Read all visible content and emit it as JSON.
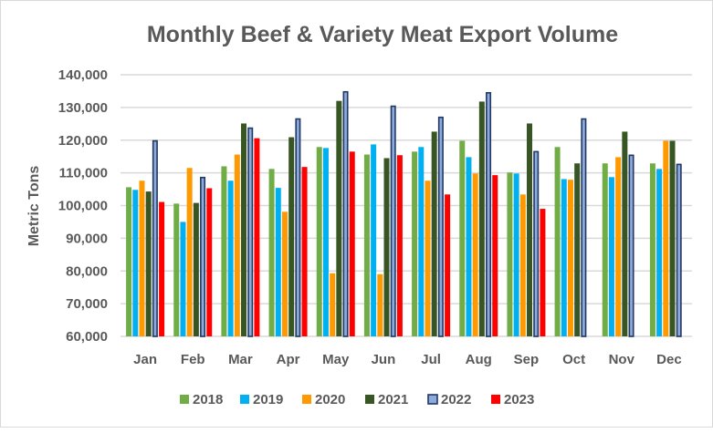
{
  "chart_data": {
    "type": "bar",
    "title": "Monthly Beef & Variety Meat Export Volume",
    "xlabel": "",
    "ylabel": "Metric Tons",
    "ylim": [
      60000,
      140000
    ],
    "yticks": [
      60000,
      70000,
      80000,
      90000,
      100000,
      110000,
      120000,
      130000,
      140000
    ],
    "ytick_labels": [
      "60,000",
      "70,000",
      "80,000",
      "90,000",
      "100,000",
      "110,000",
      "120,000",
      "130,000",
      "140,000"
    ],
    "grid": true,
    "legend_position": "bottom",
    "categories": [
      "Jan",
      "Feb",
      "Mar",
      "Apr",
      "May",
      "Jun",
      "Jul",
      "Aug",
      "Sep",
      "Oct",
      "Nov",
      "Dec"
    ],
    "series": [
      {
        "name": "2018",
        "color": "#70ad47",
        "values": [
          105600,
          100600,
          112000,
          111200,
          117900,
          115600,
          116500,
          119800,
          110100,
          117900,
          112900,
          112900
        ]
      },
      {
        "name": "2019",
        "color": "#00b0f0",
        "values": [
          104800,
          95000,
          107600,
          105400,
          117600,
          118700,
          117900,
          114800,
          109800,
          108100,
          108700,
          111200
        ]
      },
      {
        "name": "2020",
        "color": "#ff9900",
        "values": [
          107600,
          111500,
          115600,
          98100,
          79300,
          79000,
          107600,
          109800,
          103400,
          107900,
          114800,
          119800
        ]
      },
      {
        "name": "2021",
        "color": "#375623",
        "values": [
          104300,
          100800,
          125100,
          120900,
          132000,
          114500,
          122600,
          131800,
          125100,
          112900,
          122600,
          119800
        ]
      },
      {
        "name": "2022",
        "color": "#8eaadb",
        "border": "#1f3864",
        "values": [
          120000,
          108800,
          123900,
          126700,
          135000,
          130600,
          127200,
          134700,
          116700,
          126700,
          115600,
          112800
        ]
      },
      {
        "name": "2023",
        "color": "#ff0000",
        "values": [
          101100,
          105300,
          120600,
          111800,
          116500,
          115400,
          103400,
          109300,
          99000,
          null,
          null,
          null
        ]
      }
    ]
  }
}
